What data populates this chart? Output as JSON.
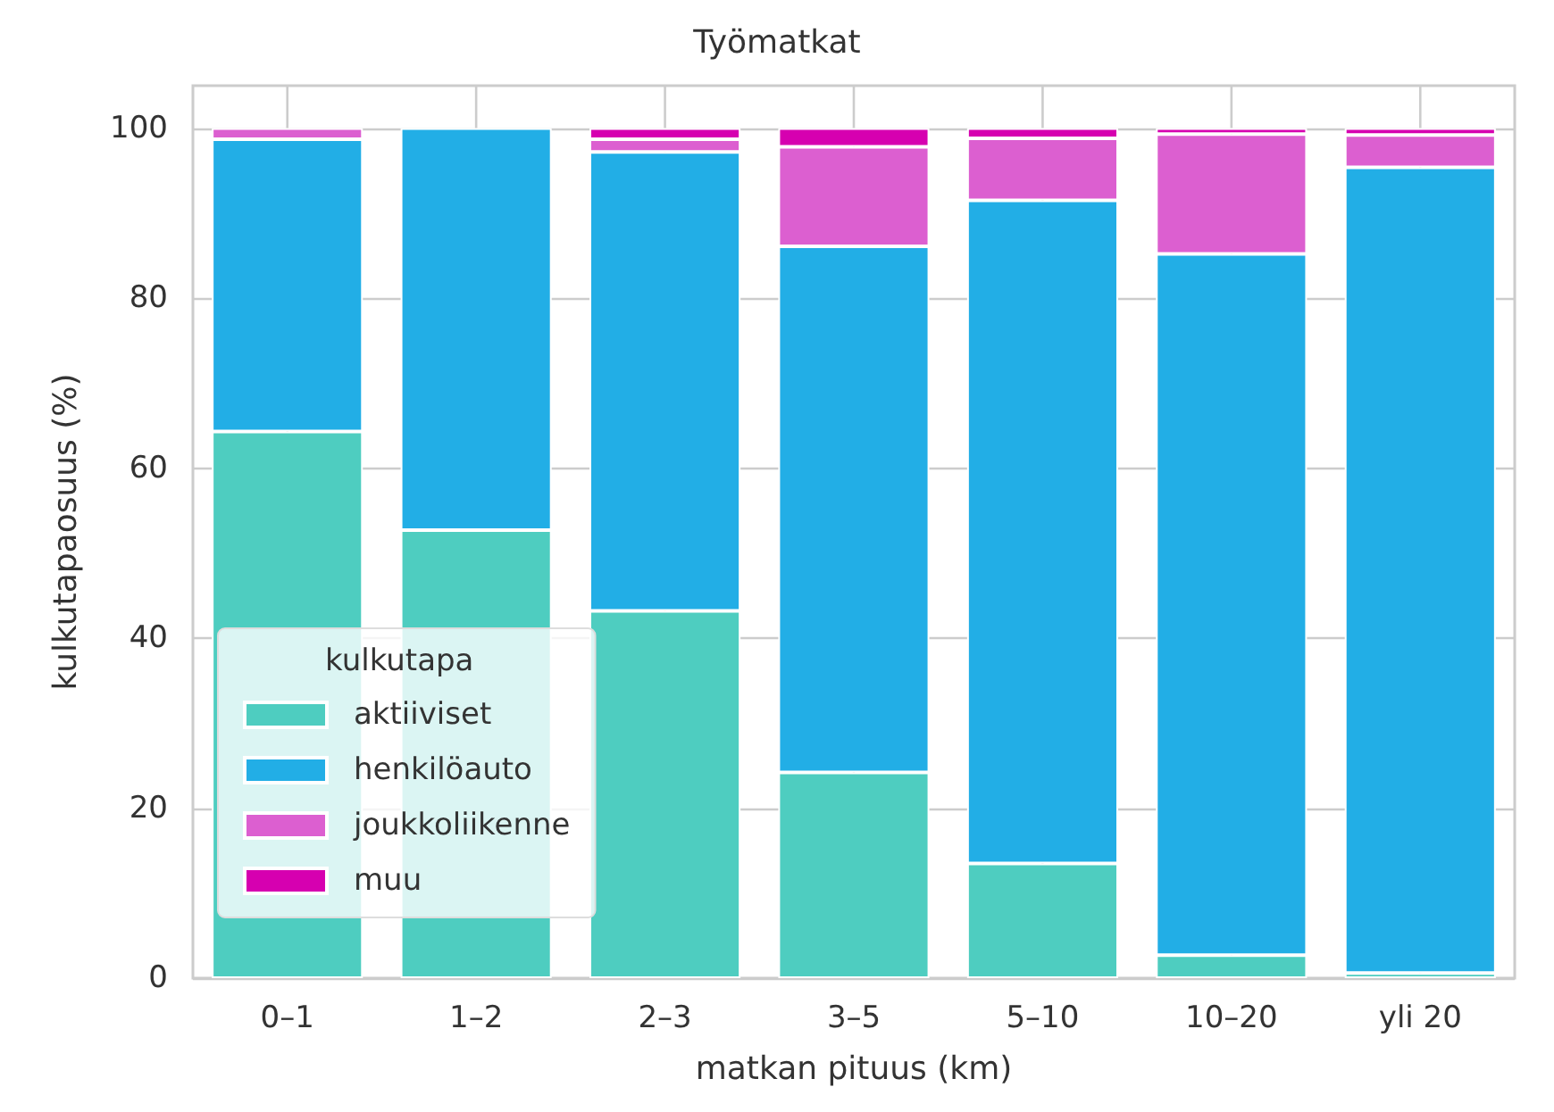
{
  "chart_data": {
    "type": "bar",
    "title": "Työmatkat",
    "xlabel": "matkan pituus (km)",
    "ylabel": "kulkutapaosuus (%)",
    "legend_title": "kulkutapa",
    "categories": [
      "0–1",
      "1–2",
      "2–3",
      "3–5",
      "5–10",
      "10–20",
      "yli 20"
    ],
    "stacked": true,
    "series": [
      {
        "name": "aktiiviset",
        "color": "#4ecdc0",
        "values": [
          64.3,
          52.7,
          43.2,
          24.2,
          13.5,
          2.7,
          0.6
        ]
      },
      {
        "name": "henkilöauto",
        "color": "#22aee6",
        "values": [
          34.4,
          47.3,
          54.0,
          61.9,
          78.0,
          82.5,
          94.8
        ]
      },
      {
        "name": "joukkoliikenne",
        "color": "#dc5fd0",
        "values": [
          1.3,
          null,
          1.5,
          11.7,
          7.3,
          14.1,
          3.8
        ]
      },
      {
        "name": "muu",
        "color": "#d600b0",
        "values": [
          null,
          null,
          1.3,
          2.2,
          1.2,
          0.7,
          0.8
        ]
      }
    ],
    "ylim": [
      0,
      105
    ],
    "yticks": [
      0,
      20,
      40,
      60,
      80,
      100
    ],
    "grid": true,
    "legend": "bottom left"
  }
}
